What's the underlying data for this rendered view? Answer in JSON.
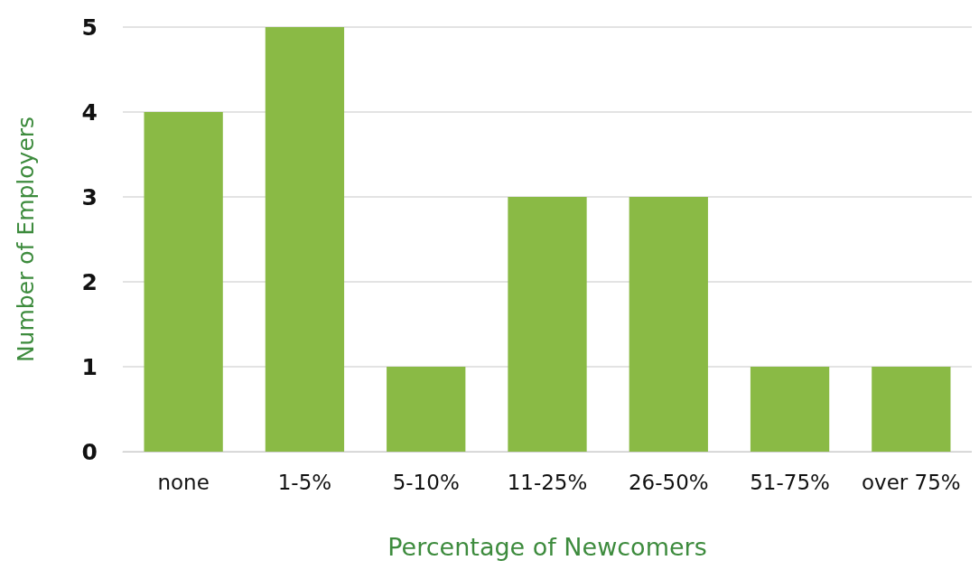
{
  "chart_data": {
    "type": "bar",
    "xlabel": "Percentage of Newcomers",
    "ylabel": "Number of Employers",
    "categories": [
      "none",
      "1-5%",
      "5-10%",
      "11-25%",
      "26-50%",
      "51-75%",
      "over 75%"
    ],
    "values": [
      4,
      5,
      1,
      3,
      3,
      1,
      1
    ],
    "color": "#8aba45",
    "ylim": [
      0,
      5
    ],
    "yticks": [
      0,
      1,
      2,
      3,
      4,
      5
    ],
    "grid": "y"
  }
}
